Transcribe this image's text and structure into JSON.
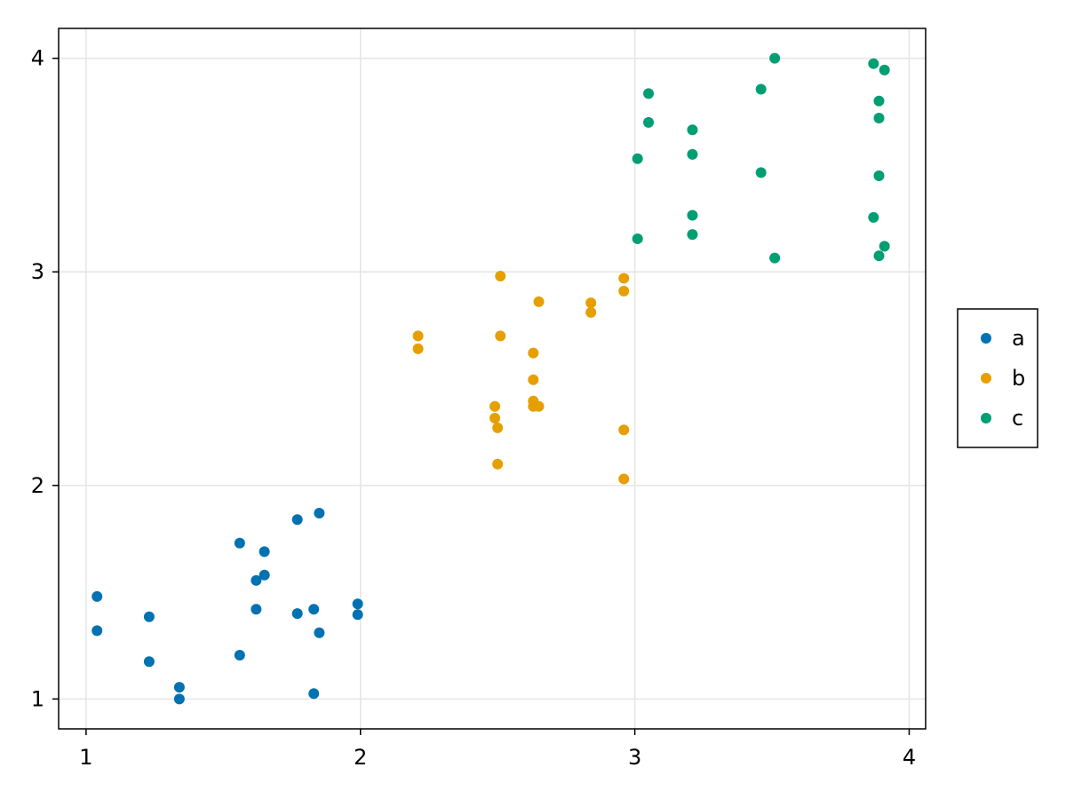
{
  "chart_data": {
    "type": "scatter",
    "title": "",
    "xlabel": "",
    "ylabel": "",
    "xlim": [
      0.9,
      4.06
    ],
    "ylim": [
      0.86,
      4.14
    ],
    "xticks": [
      1,
      2,
      3,
      4
    ],
    "yticks": [
      1,
      2,
      3,
      4
    ],
    "xtick_labels": [
      "1",
      "2",
      "3",
      "4"
    ],
    "ytick_labels": [
      "1",
      "2",
      "3",
      "4"
    ],
    "grid": true,
    "legend": {
      "position": "right",
      "entries": [
        "a",
        "b",
        "c"
      ]
    },
    "series": [
      {
        "name": "a",
        "color": "#0072b2",
        "points": [
          [
            1.04,
            1.48
          ],
          [
            1.04,
            1.32
          ],
          [
            1.23,
            1.385
          ],
          [
            1.23,
            1.175
          ],
          [
            1.34,
            1.055
          ],
          [
            1.34,
            1.0
          ],
          [
            1.56,
            1.73
          ],
          [
            1.56,
            1.205
          ],
          [
            1.62,
            1.555
          ],
          [
            1.62,
            1.42
          ],
          [
            1.65,
            1.69
          ],
          [
            1.65,
            1.58
          ],
          [
            1.77,
            1.84
          ],
          [
            1.77,
            1.4
          ],
          [
            1.83,
            1.42
          ],
          [
            1.83,
            1.025
          ],
          [
            1.85,
            1.87
          ],
          [
            1.85,
            1.31
          ],
          [
            1.99,
            1.445
          ],
          [
            1.99,
            1.395
          ]
        ]
      },
      {
        "name": "b",
        "color": "#e69f00",
        "points": [
          [
            2.21,
            2.7
          ],
          [
            2.21,
            2.64
          ],
          [
            2.49,
            2.37
          ],
          [
            2.49,
            2.315
          ],
          [
            2.5,
            2.27
          ],
          [
            2.5,
            2.1
          ],
          [
            2.51,
            2.98
          ],
          [
            2.51,
            2.7
          ],
          [
            2.63,
            2.62
          ],
          [
            2.63,
            2.495
          ],
          [
            2.63,
            2.395
          ],
          [
            2.63,
            2.37
          ],
          [
            2.65,
            2.86
          ],
          [
            2.65,
            2.37
          ],
          [
            2.84,
            2.855
          ],
          [
            2.84,
            2.81
          ],
          [
            2.96,
            2.97
          ],
          [
            2.96,
            2.91
          ],
          [
            2.96,
            2.26
          ],
          [
            2.96,
            2.03
          ]
        ]
      },
      {
        "name": "c",
        "color": "#009e73",
        "points": [
          [
            3.01,
            3.53
          ],
          [
            3.01,
            3.155
          ],
          [
            3.05,
            3.835
          ],
          [
            3.05,
            3.7
          ],
          [
            3.21,
            3.665
          ],
          [
            3.21,
            3.55
          ],
          [
            3.21,
            3.265
          ],
          [
            3.21,
            3.175
          ],
          [
            3.46,
            3.855
          ],
          [
            3.46,
            3.465
          ],
          [
            3.51,
            4.0
          ],
          [
            3.51,
            3.065
          ],
          [
            3.87,
            3.975
          ],
          [
            3.87,
            3.255
          ],
          [
            3.89,
            3.8
          ],
          [
            3.89,
            3.72
          ],
          [
            3.89,
            3.45
          ],
          [
            3.89,
            3.075
          ],
          [
            3.91,
            3.945
          ],
          [
            3.91,
            3.12
          ]
        ]
      }
    ]
  }
}
